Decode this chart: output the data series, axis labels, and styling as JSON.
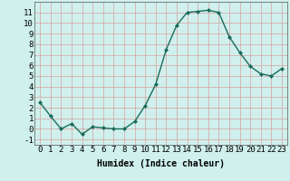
{
  "x": [
    0,
    1,
    2,
    3,
    4,
    5,
    6,
    7,
    8,
    9,
    10,
    11,
    12,
    13,
    14,
    15,
    16,
    17,
    18,
    19,
    20,
    21,
    22,
    23
  ],
  "y": [
    2.5,
    1.2,
    0.0,
    0.5,
    -0.5,
    0.2,
    0.1,
    0.0,
    0.0,
    0.7,
    2.2,
    4.2,
    7.5,
    9.8,
    11.0,
    11.1,
    11.2,
    11.0,
    8.7,
    7.2,
    5.9,
    5.2,
    5.0,
    5.7
  ],
  "line_color": "#1a6b5a",
  "marker": "D",
  "marker_size": 2,
  "bg_color": "#cff0ec",
  "grid_color": "#d9a0a0",
  "xlabel": "Humidex (Indice chaleur)",
  "ylim": [
    -1.5,
    12
  ],
  "xlim": [
    -0.5,
    23.5
  ],
  "yticks": [
    -1,
    0,
    1,
    2,
    3,
    4,
    5,
    6,
    7,
    8,
    9,
    10,
    11
  ],
  "xticks": [
    0,
    1,
    2,
    3,
    4,
    5,
    6,
    7,
    8,
    9,
    10,
    11,
    12,
    13,
    14,
    15,
    16,
    17,
    18,
    19,
    20,
    21,
    22,
    23
  ],
  "xlabel_fontsize": 7,
  "tick_fontsize": 6.5
}
